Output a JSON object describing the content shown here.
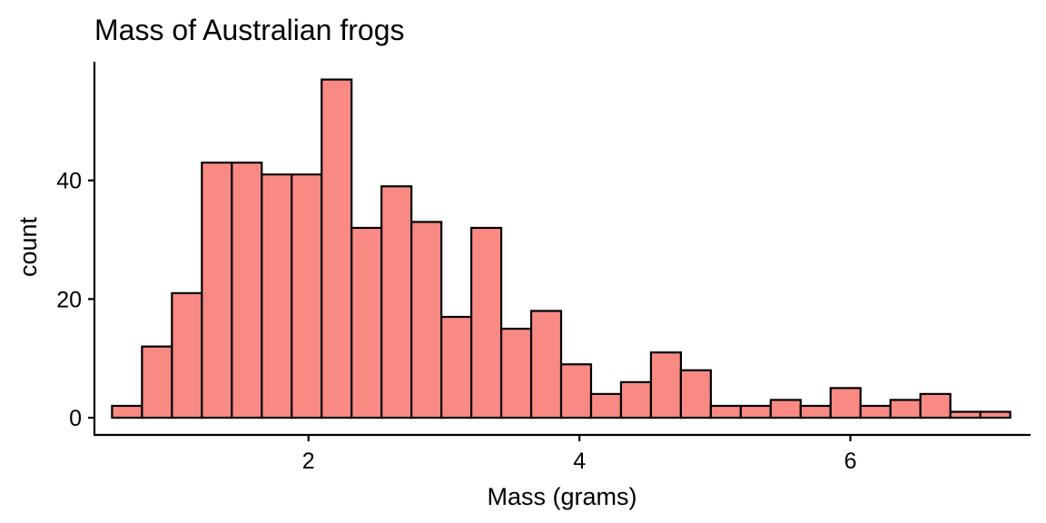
{
  "chart_data": {
    "type": "bar",
    "title": "Mass of Australian frogs",
    "xlabel": "Mass (grams)",
    "ylabel": "count",
    "xlim": [
      0.42,
      7.33
    ],
    "ylim": [
      -2.9,
      60
    ],
    "x_ticks": [
      2,
      4,
      6
    ],
    "y_ticks": [
      0,
      20,
      40
    ],
    "grid": false,
    "legend": "none",
    "bin_width": 0.221,
    "bin_starts": [
      0.55,
      0.771,
      0.992,
      1.213,
      1.434,
      1.655,
      1.876,
      2.097,
      2.318,
      2.539,
      2.76,
      2.981,
      3.202,
      3.423,
      3.644,
      3.865,
      4.086,
      4.307,
      4.528,
      4.749,
      4.97,
      5.191,
      5.412,
      5.633,
      5.854,
      6.075,
      6.296,
      6.517,
      6.738,
      6.959
    ],
    "values": [
      2,
      12,
      21,
      43,
      43,
      41,
      41,
      57,
      32,
      39,
      33,
      17,
      32,
      15,
      18,
      9,
      4,
      6,
      11,
      8,
      2,
      2,
      3,
      2,
      5,
      2,
      3,
      4,
      1,
      1
    ],
    "colors": {
      "bar_fill": "#F8766D",
      "bar_fill_opacity": "0.85",
      "bar_stroke": "#000000",
      "axis": "#000000"
    }
  }
}
